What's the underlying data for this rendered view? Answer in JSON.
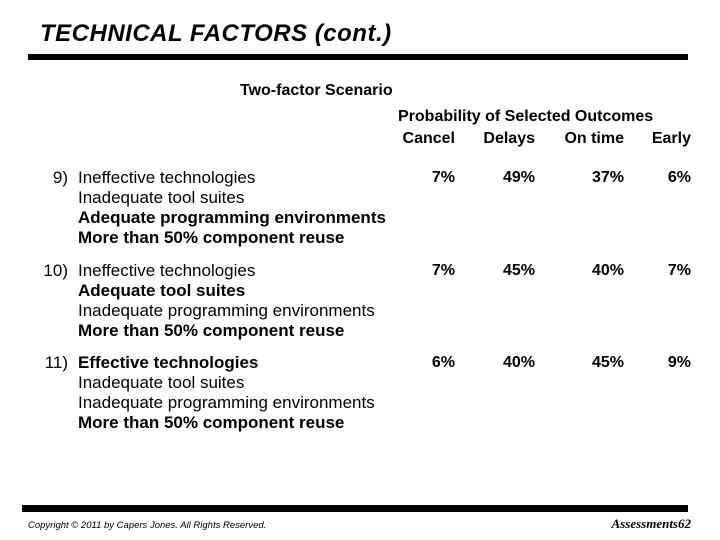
{
  "slide": {
    "title": "TECHNICAL FACTORS (cont.)",
    "subtitle": "Two-factor Scenario",
    "table": {
      "header_title": "Probability of Selected Outcomes",
      "columns": [
        "Cancel",
        "Delays",
        "On time",
        "Early"
      ],
      "rows": [
        {
          "number": "9)",
          "lines": [
            {
              "text": "Ineffective technologies",
              "bold": false
            },
            {
              "text": "Inadequate tool suites",
              "bold": false
            },
            {
              "text": "Adequate programming environments",
              "bold": true
            },
            {
              "text": "More than 50% component reuse",
              "bold": true
            }
          ],
          "values": [
            "7%",
            "49%",
            "37%",
            "6%"
          ]
        },
        {
          "number": "10)",
          "lines": [
            {
              "text": "Ineffective technologies",
              "bold": false
            },
            {
              "text": "Adequate tool suites",
              "bold": true
            },
            {
              "text": "Inadequate programming environments",
              "bold": false
            },
            {
              "text": "More than 50% component reuse",
              "bold": true
            }
          ],
          "values": [
            "7%",
            "45%",
            "40%",
            "7%"
          ]
        },
        {
          "number": "11)",
          "lines": [
            {
              "text": "Effective technologies",
              "bold": true
            },
            {
              "text": "Inadequate tool suites",
              "bold": false
            },
            {
              "text": "Inadequate programming environments",
              "bold": false
            },
            {
              "text": "More than 50% component reuse",
              "bold": true
            }
          ],
          "values": [
            "6%",
            "40%",
            "45%",
            "9%"
          ]
        }
      ]
    },
    "footer": {
      "copyright": "Copyright © 2011 by Capers Jones.  All Rights Reserved.",
      "page_label": "Assessments62"
    },
    "colors": {
      "background": "#ffffff",
      "text": "#000000",
      "rule": "#000000"
    }
  }
}
